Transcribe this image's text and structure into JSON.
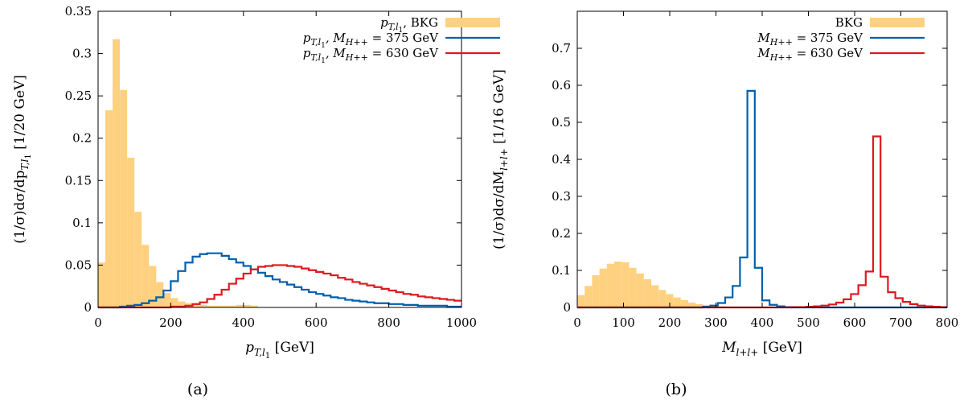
{
  "chart_data": [
    {
      "type": "bar",
      "caption": "(a)",
      "xlabel": "p",
      "xlabel_sub": "T,l",
      "xlabel_subsub": "1",
      "xlabel_unit": "[GeV]",
      "ylabel": "(1/σ)dσ/dp",
      "ylabel_sub": "T,l",
      "ylabel_subsub": "1",
      "ylabel_unit": "[1/20 GeV]",
      "xlim": [
        0,
        1000
      ],
      "ylim": [
        0,
        0.35
      ],
      "xticks": [
        0,
        200,
        400,
        600,
        800,
        1000
      ],
      "yticks": [
        0,
        0.05,
        0.1,
        0.15,
        0.2,
        0.25,
        0.3,
        0.35
      ],
      "ytick_labels": [
        "0",
        "0.05",
        "0.1",
        "0.15",
        "0.2",
        "0.25",
        "0.3",
        "0.35"
      ],
      "grid": false,
      "legend_position": "top-right",
      "bin_width": 20,
      "series": [
        {
          "name": "p_{T,l_1}, BKG",
          "legend_main": "p",
          "legend_sub": "T,l",
          "legend_subsub": "1",
          "legend_suffix": ", BKG",
          "style": "filled",
          "color": "#fdd17f",
          "x_start": 0,
          "values": [
            0.053,
            0.233,
            0.317,
            0.257,
            0.177,
            0.113,
            0.074,
            0.049,
            0.03,
            0.017,
            0.011,
            0.007,
            0.005,
            0.004,
            0.003,
            0.002,
            0.002,
            0.002,
            0.002,
            0.003,
            0.003,
            0.002
          ]
        },
        {
          "name": "p_{T,l_1}, M_{H++} = 375 GeV",
          "legend_main": "p",
          "legend_sub": "T,l",
          "legend_subsub": "1",
          "legend_mid": ", M",
          "legend_mid_sub": "H++",
          "legend_suffix": " = 375 GeV",
          "style": "step",
          "color": "#0060ad",
          "x_start": 0,
          "values": [
            0.0,
            0.0,
            0.0,
            0.001,
            0.002,
            0.003,
            0.005,
            0.008,
            0.012,
            0.02,
            0.031,
            0.043,
            0.053,
            0.06,
            0.063,
            0.064,
            0.064,
            0.061,
            0.057,
            0.053,
            0.049,
            0.045,
            0.041,
            0.037,
            0.033,
            0.03,
            0.027,
            0.024,
            0.021,
            0.018,
            0.016,
            0.014,
            0.012,
            0.011,
            0.009,
            0.008,
            0.007,
            0.006,
            0.005,
            0.005,
            0.004,
            0.004,
            0.003,
            0.003,
            0.002,
            0.002,
            0.002,
            0.002,
            0.001,
            0.001
          ]
        },
        {
          "name": "p_{T,l_1}, M_{H++} = 630 GeV",
          "legend_main": "p",
          "legend_sub": "T,l",
          "legend_subsub": "1",
          "legend_mid": ", M",
          "legend_mid_sub": "H++",
          "legend_suffix": " = 630 GeV",
          "style": "step",
          "color": "#dd181f",
          "x_start": 0,
          "values": [
            0.0,
            0.0,
            0.0,
            0.0,
            0.0,
            0.0,
            0.0,
            0.0,
            0.0,
            0.0,
            0.001,
            0.001,
            0.002,
            0.004,
            0.006,
            0.01,
            0.015,
            0.021,
            0.028,
            0.034,
            0.04,
            0.045,
            0.048,
            0.049,
            0.05,
            0.05,
            0.049,
            0.048,
            0.046,
            0.044,
            0.042,
            0.04,
            0.038,
            0.035,
            0.033,
            0.03,
            0.028,
            0.026,
            0.024,
            0.022,
            0.02,
            0.018,
            0.016,
            0.015,
            0.013,
            0.012,
            0.011,
            0.01,
            0.009,
            0.008
          ]
        }
      ]
    },
    {
      "type": "bar",
      "caption": "(b)",
      "xlabel": "M",
      "xlabel_sub": "l+l+",
      "xlabel_unit": "[GeV]",
      "ylabel": "(1/σ)dσ/dM",
      "ylabel_sub": "l+l+",
      "ylabel_unit": "[1/16 GeV]",
      "xlim": [
        0,
        800
      ],
      "ylim": [
        0,
        0.8
      ],
      "xticks": [
        0,
        100,
        200,
        300,
        400,
        500,
        600,
        700,
        800
      ],
      "yticks": [
        0,
        0.1,
        0.2,
        0.3,
        0.4,
        0.5,
        0.6,
        0.7
      ],
      "ytick_labels": [
        "0",
        "0.1",
        "0.2",
        "0.3",
        "0.4",
        "0.5",
        "0.6",
        "0.7"
      ],
      "grid": false,
      "legend_position": "top-right",
      "bin_width": 16,
      "series": [
        {
          "name": "BKG",
          "legend_main": "BKG",
          "style": "filled",
          "color": "#fdd17f",
          "x_start": 0,
          "values": [
            0.033,
            0.058,
            0.087,
            0.105,
            0.118,
            0.124,
            0.122,
            0.107,
            0.092,
            0.076,
            0.06,
            0.047,
            0.036,
            0.027,
            0.02,
            0.013,
            0.009,
            0.006,
            0.004,
            0.003
          ]
        },
        {
          "name": "M_{H++} = 375 GeV",
          "legend_main": "M",
          "legend_sub": "H++",
          "legend_suffix": " = 375 GeV",
          "style": "step",
          "color": "#0060ad",
          "x_start": 0,
          "values": [
            0.0,
            0.0,
            0.0,
            0.0,
            0.0,
            0.0,
            0.0,
            0.0,
            0.0,
            0.0,
            0.0,
            0.0,
            0.0,
            0.0,
            0.0,
            0.0,
            0.0,
            0.002,
            0.005,
            0.012,
            0.027,
            0.058,
            0.135,
            0.585,
            0.107,
            0.019,
            0.007,
            0.003,
            0.001,
            0.0,
            0.0,
            0.0,
            0.0,
            0.0,
            0.0,
            0.0,
            0.0,
            0.0,
            0.0,
            0.0,
            0.0,
            0.0,
            0.0,
            0.0,
            0.0,
            0.0,
            0.0,
            0.0,
            0.0,
            0.0
          ]
        },
        {
          "name": "M_{H++} = 630 GeV",
          "legend_main": "M",
          "legend_sub": "H++",
          "legend_suffix": " = 630 GeV",
          "style": "step",
          "color": "#dd181f",
          "x_start": 0,
          "values": [
            0.0,
            0.0,
            0.0,
            0.0,
            0.0,
            0.0,
            0.0,
            0.0,
            0.0,
            0.0,
            0.0,
            0.0,
            0.0,
            0.0,
            0.0,
            0.0,
            0.0,
            0.0,
            0.0,
            0.0,
            0.0,
            0.0,
            0.0,
            0.0,
            0.0,
            0.0,
            0.0,
            0.0,
            0.0,
            0.001,
            0.001,
            0.002,
            0.003,
            0.005,
            0.008,
            0.013,
            0.022,
            0.036,
            0.06,
            0.097,
            0.462,
            0.083,
            0.041,
            0.025,
            0.015,
            0.009,
            0.005,
            0.003,
            0.002,
            0.001
          ]
        }
      ]
    }
  ]
}
